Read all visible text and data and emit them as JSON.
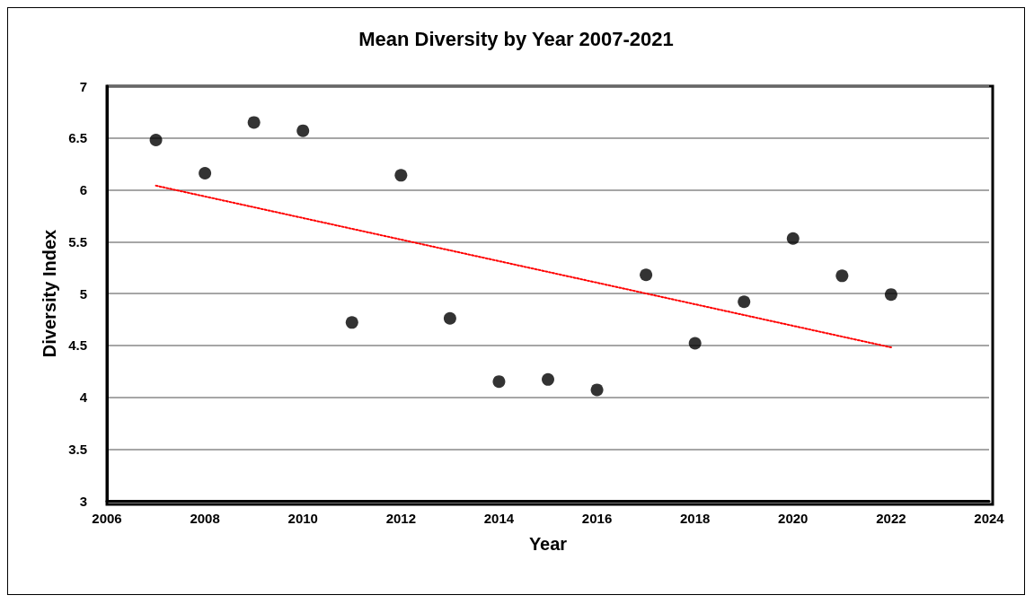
{
  "chart_data": {
    "type": "scatter",
    "title": "Mean Diversity by Year 2007-2021",
    "xlabel": "Year",
    "ylabel": "Diversity Index",
    "x": [
      2007,
      2008,
      2009,
      2010,
      2011,
      2012,
      2013,
      2014,
      2015,
      2016,
      2017,
      2018,
      2019,
      2020,
      2021,
      2022
    ],
    "series": [
      {
        "color": "#000000",
        "marker": "circle",
        "values": [
          6.48,
          6.16,
          6.65,
          6.57,
          4.72,
          6.14,
          4.76,
          4.15,
          4.17,
          4.07,
          5.18,
          4.52,
          4.92,
          5.53,
          5.17,
          4.99
        ]
      },
      {
        "type": "line",
        "color": "#ff0000",
        "line_style": "dotted",
        "marker": "none",
        "x": [
          2007,
          2022
        ],
        "values": [
          6.04,
          4.48
        ]
      }
    ],
    "xlim": [
      2006,
      2024
    ],
    "xticks": [
      2006,
      2008,
      2010,
      2012,
      2014,
      2016,
      2018,
      2020,
      2022,
      2024
    ],
    "ylim": [
      3,
      7
    ],
    "yticks": [
      3,
      3.5,
      4,
      4.5,
      5,
      5.5,
      6,
      6.5,
      7
    ],
    "grid": "y"
  }
}
